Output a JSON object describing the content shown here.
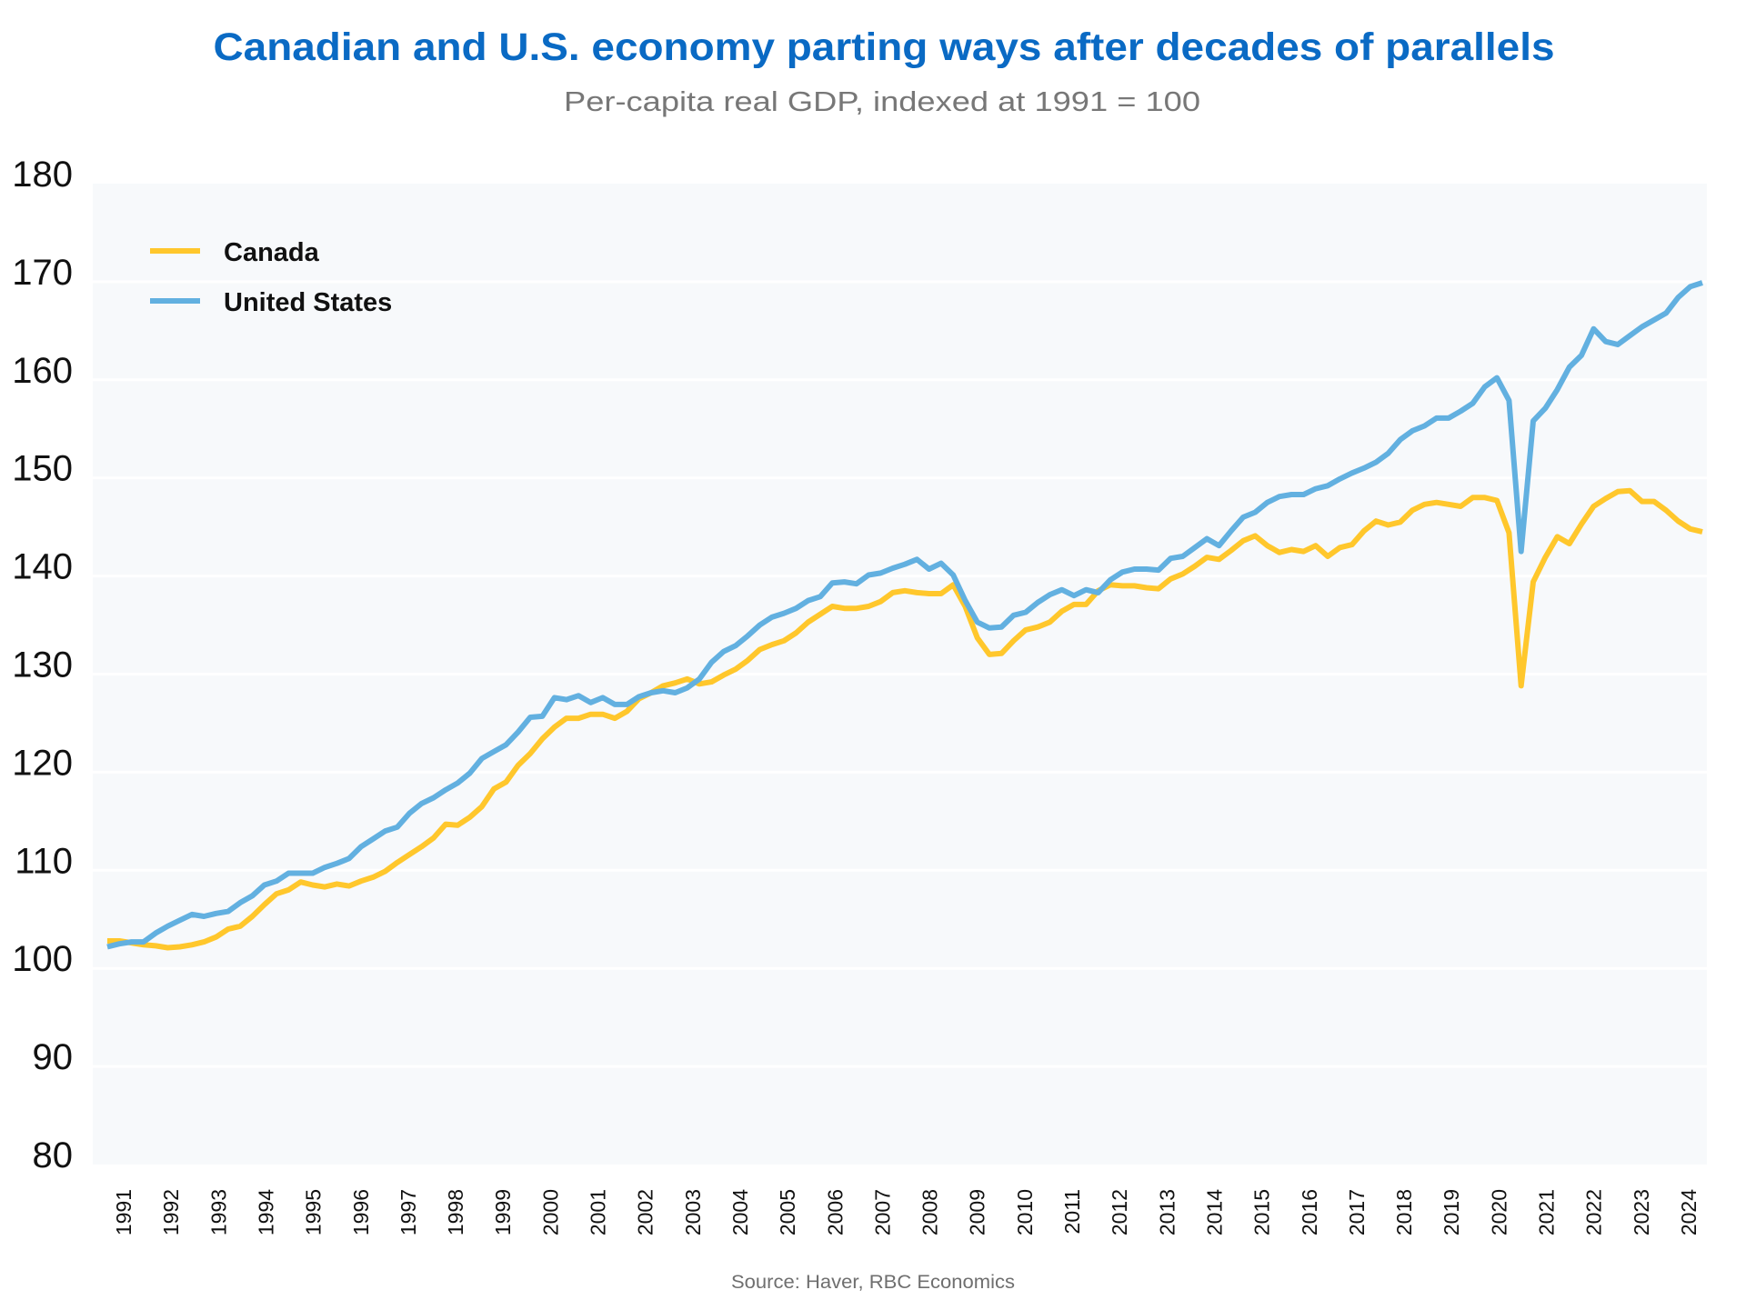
{
  "chart_data": {
    "type": "line",
    "title": "Canadian and U.S. economy parting ways after decades of parallels",
    "subtitle": "Per-capita real GDP, indexed at 1991 = 100",
    "xlabel": "",
    "ylabel": "",
    "source": "Source: Haver, RBC Economics",
    "frequency": "quarterly",
    "x_start": "1991Q1",
    "x_end": "2024Q1",
    "x_tick_labels": [
      "1991",
      "1992",
      "1993",
      "1994",
      "1995",
      "1996",
      "1997",
      "1998",
      "1999",
      "2000",
      "2001",
      "2002",
      "2003",
      "2004",
      "2005",
      "2006",
      "2007",
      "2008",
      "2009",
      "2010",
      "2011",
      "2012",
      "2013",
      "2014",
      "2015",
      "2016",
      "2017",
      "2018",
      "2019",
      "2020",
      "2021",
      "2022",
      "2023",
      "2024"
    ],
    "ylim": [
      80,
      180
    ],
    "y_ticks": [
      80,
      90,
      100,
      110,
      120,
      130,
      140,
      150,
      160,
      170,
      180
    ],
    "y_tick_labels": [
      "80",
      "90",
      "100",
      "110",
      "120",
      "130",
      "140",
      "150",
      "160",
      "170",
      "180"
    ],
    "grid": true,
    "legend_position": "top-left",
    "series": [
      {
        "name": "Canada",
        "color": "#ffc72c",
        "values": [
          102.8,
          102.8,
          102.6,
          102.4,
          102.3,
          102.1,
          102.2,
          102.4,
          102.7,
          103.2,
          104.0,
          104.3,
          105.3,
          106.5,
          107.6,
          108.0,
          108.8,
          108.5,
          108.3,
          108.6,
          108.4,
          108.9,
          109.3,
          109.9,
          110.8,
          111.6,
          112.4,
          113.3,
          114.7,
          114.6,
          115.4,
          116.5,
          118.3,
          119.0,
          120.7,
          121.9,
          123.4,
          124.6,
          125.5,
          125.5,
          125.9,
          125.9,
          125.5,
          126.2,
          127.5,
          128.1,
          128.8,
          129.1,
          129.5,
          129.0,
          129.2,
          129.9,
          130.5,
          131.4,
          132.5,
          133.0,
          133.4,
          134.2,
          135.3,
          136.1,
          136.9,
          136.7,
          136.7,
          136.9,
          137.4,
          138.3,
          138.5,
          138.3,
          138.2,
          138.2,
          139.1,
          136.9,
          133.7,
          132.0,
          132.1,
          133.4,
          134.5,
          134.8,
          135.3,
          136.4,
          137.1,
          137.1,
          138.5,
          139.1,
          139.0,
          139.0,
          138.8,
          138.7,
          139.7,
          140.2,
          141.0,
          141.9,
          141.7,
          142.6,
          143.6,
          144.1,
          143.1,
          142.4,
          142.7,
          142.5,
          143.1,
          142.0,
          142.9,
          143.2,
          144.6,
          145.6,
          145.2,
          145.5,
          146.7,
          147.3,
          147.5,
          147.3,
          147.1,
          148.0,
          148.0,
          147.7,
          144.4,
          128.8,
          139.4,
          141.9,
          144.0,
          143.3,
          145.3,
          147.1,
          147.9,
          148.6,
          148.7,
          147.6,
          147.6,
          146.7,
          145.6,
          144.8,
          144.5
        ]
      },
      {
        "name": "United States",
        "color": "#62b0e0",
        "values": [
          102.2,
          102.5,
          102.7,
          102.7,
          103.6,
          104.3,
          104.9,
          105.5,
          105.3,
          105.6,
          105.8,
          106.7,
          107.4,
          108.5,
          108.9,
          109.7,
          109.7,
          109.7,
          110.3,
          110.7,
          111.2,
          112.4,
          113.2,
          114.0,
          114.4,
          115.8,
          116.8,
          117.4,
          118.2,
          118.9,
          119.9,
          121.4,
          122.1,
          122.8,
          124.1,
          125.6,
          125.7,
          127.6,
          127.4,
          127.8,
          127.1,
          127.6,
          126.9,
          126.9,
          127.7,
          128.1,
          128.3,
          128.1,
          128.6,
          129.5,
          131.2,
          132.3,
          132.9,
          133.9,
          135.0,
          135.8,
          136.2,
          136.7,
          137.5,
          137.9,
          139.3,
          139.4,
          139.2,
          140.1,
          140.3,
          140.8,
          141.2,
          141.7,
          140.7,
          141.3,
          140.1,
          137.5,
          135.3,
          134.7,
          134.8,
          136.0,
          136.3,
          137.3,
          138.1,
          138.6,
          138.0,
          138.6,
          138.3,
          139.6,
          140.4,
          140.7,
          140.7,
          140.6,
          141.8,
          142.0,
          142.9,
          143.8,
          143.1,
          144.6,
          146.0,
          146.5,
          147.5,
          148.1,
          148.3,
          148.3,
          148.9,
          149.2,
          149.9,
          150.5,
          151.0,
          151.6,
          152.5,
          153.9,
          154.8,
          155.3,
          156.1,
          156.1,
          156.8,
          157.6,
          159.3,
          160.2,
          157.9,
          142.5,
          155.8,
          157.1,
          159.0,
          161.3,
          162.5,
          165.2,
          163.9,
          163.6,
          164.5,
          165.4,
          166.1,
          166.8,
          168.4,
          169.5,
          169.9
        ]
      }
    ]
  }
}
